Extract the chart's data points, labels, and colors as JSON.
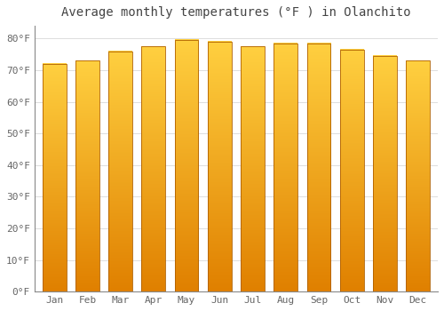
{
  "title": "Average monthly temperatures (°F ) in Olanchito",
  "months": [
    "Jan",
    "Feb",
    "Mar",
    "Apr",
    "May",
    "Jun",
    "Jul",
    "Aug",
    "Sep",
    "Oct",
    "Nov",
    "Dec"
  ],
  "temperatures": [
    72,
    73,
    76,
    77.5,
    79.5,
    79,
    77.5,
    78.5,
    78.5,
    76.5,
    74.5,
    73
  ],
  "bar_color_bottom": "#E08000",
  "bar_color_top": "#FFD040",
  "bar_edge_color": "#B06000",
  "background_color": "#FFFFFF",
  "grid_color": "#DDDDDD",
  "ytick_labels": [
    "0°F",
    "10°F",
    "20°F",
    "30°F",
    "40°F",
    "50°F",
    "60°F",
    "70°F",
    "80°F"
  ],
  "ytick_values": [
    0,
    10,
    20,
    30,
    40,
    50,
    60,
    70,
    80
  ],
  "ylim": [
    0,
    84
  ],
  "title_fontsize": 10,
  "tick_fontsize": 8,
  "font_family": "monospace"
}
